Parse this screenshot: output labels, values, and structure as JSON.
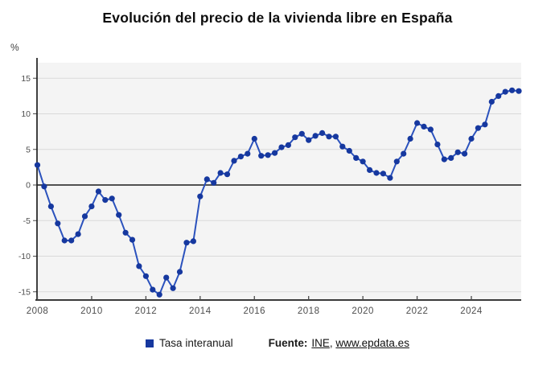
{
  "title": "Evolución del precio de la vivienda libre en España",
  "y_unit": "%",
  "legend": {
    "series_label": "Tasa interanual",
    "source_label": "Fuente:",
    "link_ine": "INE",
    "separator": ", ",
    "link_epdata": "www.epdata.es"
  },
  "colors": {
    "line": "#2b52bd",
    "dot": "#16389f",
    "plot_bg": "#f4f4f4",
    "grid": "#d9d9d9",
    "zero_line": "#3a3a3a",
    "axis": "#1f1f1f",
    "tick": "#4a4a4a",
    "tick_label": "#4d4d4d"
  },
  "chart_data": {
    "type": "line",
    "title": "Evolución del precio de la vivienda libre en España",
    "series_name": "Tasa interanual",
    "ylabel": "%",
    "xlabel": "",
    "grid": true,
    "legend_position": "bottom",
    "ylim": [
      -16.3,
      17.3
    ],
    "y_ticks": [
      15,
      10,
      5,
      0,
      -5,
      -10,
      -15
    ],
    "x_ticks": [
      2008,
      2010,
      2012,
      2014,
      2016,
      2018,
      2020,
      2022,
      2024
    ],
    "x_start_year": 2008,
    "x_period": "quarterly",
    "quarters": [
      "2008T1",
      "2008T2",
      "2008T3",
      "2008T4",
      "2009T1",
      "2009T2",
      "2009T3",
      "2009T4",
      "2010T1",
      "2010T2",
      "2010T3",
      "2010T4",
      "2011T1",
      "2011T2",
      "2011T3",
      "2011T4",
      "2012T1",
      "2012T2",
      "2012T3",
      "2012T4",
      "2013T1",
      "2013T2",
      "2013T3",
      "2013T4",
      "2014T1",
      "2014T2",
      "2014T3",
      "2014T4",
      "2015T1",
      "2015T2",
      "2015T3",
      "2015T4",
      "2016T1",
      "2016T2",
      "2016T3",
      "2016T4",
      "2017T1",
      "2017T2",
      "2017T3",
      "2017T4",
      "2018T1",
      "2018T2",
      "2018T3",
      "2018T4",
      "2019T1",
      "2019T2",
      "2019T3",
      "2019T4",
      "2020T1",
      "2020T2",
      "2020T3",
      "2020T4",
      "2021T1",
      "2021T2",
      "2021T3",
      "2021T4",
      "2022T1",
      "2022T2",
      "2022T3",
      "2022T4",
      "2023T1",
      "2023T2",
      "2023T3",
      "2023T4",
      "2024T1",
      "2024T2",
      "2024T3",
      "2024T4",
      "2025T1",
      "2025T2",
      "2025T3",
      "2025T4"
    ],
    "values": [
      2.8,
      -0.2,
      -3.0,
      -5.4,
      -7.8,
      -7.8,
      -6.9,
      -4.4,
      -3.0,
      -0.9,
      -2.1,
      -1.9,
      -4.2,
      -6.7,
      -7.7,
      -11.4,
      -12.8,
      -14.7,
      -15.4,
      -13.0,
      -14.5,
      -12.2,
      -8.1,
      -7.9,
      -1.6,
      0.8,
      0.3,
      1.7,
      1.5,
      3.4,
      4.0,
      4.4,
      6.5,
      4.1,
      4.2,
      4.5,
      5.3,
      5.6,
      6.7,
      7.2,
      6.3,
      6.9,
      7.3,
      6.8,
      6.8,
      5.4,
      4.8,
      3.8,
      3.3,
      2.1,
      1.7,
      1.6,
      1.0,
      3.3,
      4.4,
      6.5,
      8.7,
      8.2,
      7.8,
      5.7,
      3.6,
      3.8,
      4.6,
      4.4,
      6.5,
      8.0,
      8.5,
      11.7,
      12.5,
      13.1,
      13.3,
      13.2
    ]
  }
}
